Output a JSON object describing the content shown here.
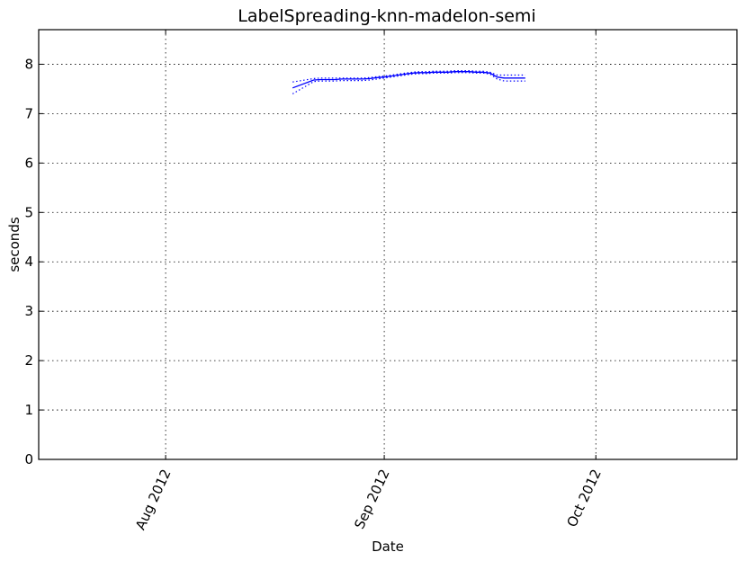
{
  "chart_data": {
    "type": "line",
    "title": "LabelSpreading-knn-madelon-semi",
    "xlabel": "Date",
    "ylabel": "seconds",
    "x_axis_type": "date",
    "xlim": [
      "2012-07-14",
      "2012-10-21"
    ],
    "ylim": [
      0,
      8.7
    ],
    "grid": true,
    "x_ticks": [
      {
        "value": "2012-08-01",
        "label": "Aug 2012"
      },
      {
        "value": "2012-09-01",
        "label": "Sep 2012"
      },
      {
        "value": "2012-10-01",
        "label": "Oct 2012"
      }
    ],
    "y_ticks": [
      0,
      1,
      2,
      3,
      4,
      5,
      6,
      7,
      8
    ],
    "series": [
      {
        "role": "mean",
        "color": "#0000ff",
        "style": "solid",
        "x": [
          "2012-08-19",
          "2012-08-22",
          "2012-08-23",
          "2012-08-24",
          "2012-08-25",
          "2012-08-26",
          "2012-08-27",
          "2012-08-28",
          "2012-08-29",
          "2012-08-30",
          "2012-08-31",
          "2012-09-01",
          "2012-09-02",
          "2012-09-03",
          "2012-09-04",
          "2012-09-05",
          "2012-09-06",
          "2012-09-07",
          "2012-09-08",
          "2012-09-09",
          "2012-09-10",
          "2012-09-11",
          "2012-09-12",
          "2012-09-13",
          "2012-09-14",
          "2012-09-15",
          "2012-09-16",
          "2012-09-17",
          "2012-09-18",
          "2012-09-19",
          "2012-09-20",
          "2012-09-21"
        ],
        "values": [
          7.52,
          7.68,
          7.69,
          7.69,
          7.69,
          7.7,
          7.7,
          7.7,
          7.7,
          7.71,
          7.73,
          7.74,
          7.76,
          7.78,
          7.8,
          7.82,
          7.83,
          7.83,
          7.84,
          7.84,
          7.84,
          7.85,
          7.85,
          7.85,
          7.84,
          7.84,
          7.82,
          7.74,
          7.72,
          7.72,
          7.72,
          7.72
        ]
      },
      {
        "role": "upper-bound",
        "color": "#0000ff",
        "style": "dotted",
        "x": [
          "2012-08-19",
          "2012-08-22",
          "2012-08-23",
          "2012-08-24",
          "2012-08-25",
          "2012-08-26",
          "2012-08-27",
          "2012-08-28",
          "2012-08-29",
          "2012-08-30",
          "2012-08-31",
          "2012-09-01",
          "2012-09-02",
          "2012-09-03",
          "2012-09-04",
          "2012-09-05",
          "2012-09-06",
          "2012-09-07",
          "2012-09-08",
          "2012-09-09",
          "2012-09-10",
          "2012-09-11",
          "2012-09-12",
          "2012-09-13",
          "2012-09-14",
          "2012-09-15",
          "2012-09-16",
          "2012-09-17",
          "2012-09-18",
          "2012-09-19",
          "2012-09-20",
          "2012-09-21"
        ],
        "values": [
          7.64,
          7.71,
          7.72,
          7.72,
          7.72,
          7.72,
          7.72,
          7.72,
          7.72,
          7.73,
          7.75,
          7.76,
          7.78,
          7.8,
          7.82,
          7.84,
          7.85,
          7.85,
          7.86,
          7.86,
          7.86,
          7.87,
          7.87,
          7.87,
          7.86,
          7.86,
          7.84,
          7.78,
          7.78,
          7.78,
          7.78,
          7.78
        ]
      },
      {
        "role": "lower-bound",
        "color": "#0000ff",
        "style": "dotted",
        "x": [
          "2012-08-19",
          "2012-08-22",
          "2012-08-23",
          "2012-08-24",
          "2012-08-25",
          "2012-08-26",
          "2012-08-27",
          "2012-08-28",
          "2012-08-29",
          "2012-08-30",
          "2012-08-31",
          "2012-09-01",
          "2012-09-02",
          "2012-09-03",
          "2012-09-04",
          "2012-09-05",
          "2012-09-06",
          "2012-09-07",
          "2012-09-08",
          "2012-09-09",
          "2012-09-10",
          "2012-09-11",
          "2012-09-12",
          "2012-09-13",
          "2012-09-14",
          "2012-09-15",
          "2012-09-16",
          "2012-09-17",
          "2012-09-18",
          "2012-09-19",
          "2012-09-20",
          "2012-09-21"
        ],
        "values": [
          7.4,
          7.65,
          7.66,
          7.66,
          7.66,
          7.67,
          7.67,
          7.67,
          7.67,
          7.68,
          7.7,
          7.72,
          7.74,
          7.76,
          7.78,
          7.8,
          7.81,
          7.81,
          7.82,
          7.82,
          7.82,
          7.83,
          7.83,
          7.83,
          7.82,
          7.82,
          7.8,
          7.7,
          7.66,
          7.66,
          7.66,
          7.66
        ]
      }
    ]
  }
}
